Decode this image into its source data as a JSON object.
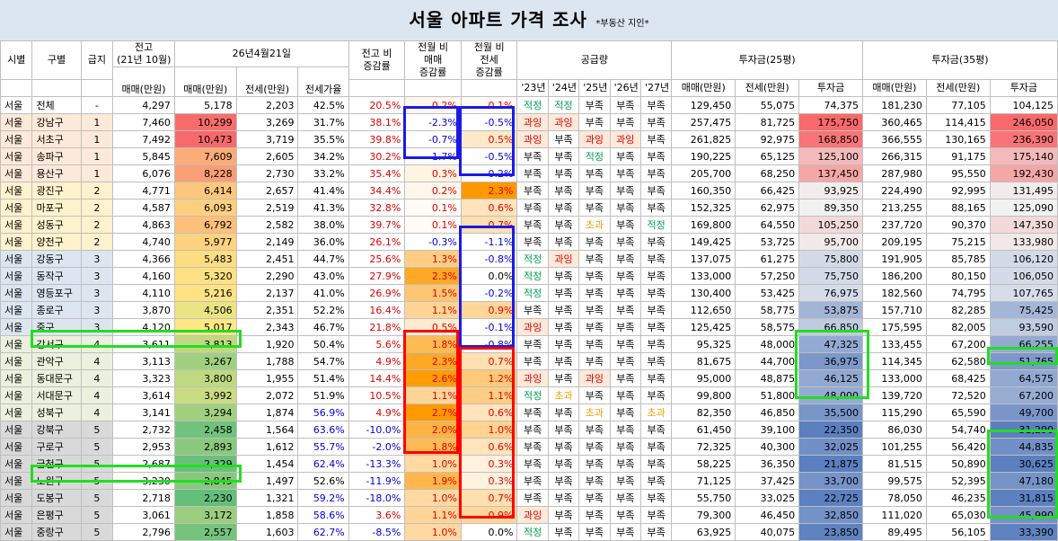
{
  "title": "서울 아파트 가격 조사",
  "subtitle": "*부동산 지인*",
  "headers": {
    "region": "시별",
    "district": "구별",
    "grade": "급지",
    "jeongo_top": "전고",
    "jeongo_mid": "(21년 10월)",
    "jeongo_sale": "매매(만원)",
    "date": "26년4월21일",
    "sale": "매매(만원)",
    "jeonse": "전세(만원)",
    "jeonse_rate": "전세가율",
    "vs_jeongo": "전고 비",
    "vs_jeongo2": "증감률",
    "mom_sale1": "전월 비",
    "mom_sale2": "매매",
    "mom_sale3": "증감률",
    "mom_jeon1": "전월 비",
    "mom_jeon2": "전세",
    "mom_jeon3": "증감률",
    "supply": "공급량",
    "years": [
      "'23년",
      "'24년",
      "'25년",
      "'26년",
      "'27년"
    ],
    "inv25": "투자금(25평)",
    "inv35": "투자금(35평)",
    "inv_sale": "매매(만원)",
    "inv_jeonse": "전세(만원)",
    "inv_amount": "투자금"
  },
  "rows": [
    {
      "city": "서울",
      "gu": "전체",
      "grade": "-",
      "jeongo": "4,297",
      "sale": "5,178",
      "jeonse": "2,203",
      "rate": "42.5%",
      "vs": "20.5%",
      "ms": "0.2%",
      "mj": "0.1%",
      "sup": [
        "적정",
        "적정",
        "부족",
        "부족",
        "부족"
      ],
      "s25": "129,450",
      "j25": "55,075",
      "i25": "74,375",
      "s35": "181,230",
      "j35": "77,105",
      "i35": "104,125"
    },
    {
      "city": "서울",
      "gu": "강남구",
      "grade": "1",
      "jeongo": "7,460",
      "sale": "10,299",
      "jeonse": "3,269",
      "rate": "31.7%",
      "vs": "38.1%",
      "ms": "-2.3%",
      "mj": "-0.5%",
      "sup": [
        "과잉",
        "과잉",
        "부족",
        "부족",
        "부족"
      ],
      "s25": "257,475",
      "j25": "81,725",
      "i25": "175,750",
      "s35": "360,465",
      "j35": "114,415",
      "i35": "246,050"
    },
    {
      "city": "서울",
      "gu": "서초구",
      "grade": "1",
      "jeongo": "7,492",
      "sale": "10,473",
      "jeonse": "3,719",
      "rate": "35.5%",
      "vs": "39.8%",
      "ms": "-0.7%",
      "mj": "0.5%",
      "sup": [
        "과잉",
        "부족",
        "과잉",
        "과잉",
        "부족"
      ],
      "s25": "261,825",
      "j25": "92,975",
      "i25": "168,850",
      "s35": "366,555",
      "j35": "130,165",
      "i35": "236,390"
    },
    {
      "city": "서울",
      "gu": "송파구",
      "grade": "1",
      "jeongo": "5,845",
      "sale": "7,609",
      "jeonse": "2,605",
      "rate": "34.2%",
      "vs": "30.2%",
      "ms": "-1.7%",
      "mj": "-0.5%",
      "sup": [
        "부족",
        "부족",
        "적정",
        "부족",
        "부족"
      ],
      "s25": "190,225",
      "j25": "65,125",
      "i25": "125,100",
      "s35": "266,315",
      "j35": "91,175",
      "i35": "175,140"
    },
    {
      "city": "서울",
      "gu": "용산구",
      "grade": "1",
      "jeongo": "6,076",
      "sale": "8,228",
      "jeonse": "2,730",
      "rate": "33.2%",
      "vs": "35.4%",
      "ms": "0.3%",
      "mj": "-0.2%",
      "sup": [
        "부족",
        "부족",
        "부족",
        "부족",
        "부족"
      ],
      "s25": "205,700",
      "j25": "68,250",
      "i25": "137,450",
      "s35": "287,980",
      "j35": "95,550",
      "i35": "192,430"
    },
    {
      "city": "서울",
      "gu": "광진구",
      "grade": "2",
      "jeongo": "4,771",
      "sale": "6,414",
      "jeonse": "2,657",
      "rate": "41.4%",
      "vs": "34.4%",
      "ms": "0.2%",
      "mj": "2.3%",
      "sup": [
        "부족",
        "부족",
        "부족",
        "부족",
        "부족"
      ],
      "s25": "160,350",
      "j25": "66,425",
      "i25": "93,925",
      "s35": "224,490",
      "j35": "92,995",
      "i35": "131,495"
    },
    {
      "city": "서울",
      "gu": "마포구",
      "grade": "2",
      "jeongo": "4,587",
      "sale": "6,093",
      "jeonse": "2,519",
      "rate": "41.3%",
      "vs": "32.8%",
      "ms": "0.1%",
      "mj": "0.6%",
      "sup": [
        "부족",
        "부족",
        "부족",
        "부족",
        "부족"
      ],
      "s25": "152,325",
      "j25": "62,975",
      "i25": "89,350",
      "s35": "213,255",
      "j35": "88,165",
      "i35": "125,090"
    },
    {
      "city": "서울",
      "gu": "성동구",
      "grade": "2",
      "jeongo": "4,863",
      "sale": "6,792",
      "jeonse": "2,582",
      "rate": "38.0%",
      "vs": "39.7%",
      "ms": "0.1%",
      "mj": "0.7%",
      "sup": [
        "부족",
        "부족",
        "초과",
        "부족",
        "적정"
      ],
      "s25": "169,800",
      "j25": "64,550",
      "i25": "105,250",
      "s35": "237,720",
      "j35": "90,370",
      "i35": "147,350"
    },
    {
      "city": "서울",
      "gu": "양천구",
      "grade": "2",
      "jeongo": "4,740",
      "sale": "5,977",
      "jeonse": "2,149",
      "rate": "36.0%",
      "vs": "26.1%",
      "ms": "-0.3%",
      "mj": "-1.1%",
      "sup": [
        "부족",
        "부족",
        "부족",
        "부족",
        "부족"
      ],
      "s25": "149,425",
      "j25": "53,725",
      "i25": "95,700",
      "s35": "209,195",
      "j35": "75,215",
      "i35": "133,980"
    },
    {
      "city": "서울",
      "gu": "강동구",
      "grade": "3",
      "jeongo": "4,366",
      "sale": "5,483",
      "jeonse": "2,451",
      "rate": "44.7%",
      "vs": "25.6%",
      "ms": "1.3%",
      "mj": "-0.8%",
      "sup": [
        "적정",
        "과잉",
        "부족",
        "부족",
        "부족"
      ],
      "s25": "137,075",
      "j25": "61,275",
      "i25": "75,800",
      "s35": "191,905",
      "j35": "85,785",
      "i35": "106,120"
    },
    {
      "city": "서울",
      "gu": "동작구",
      "grade": "3",
      "jeongo": "4,160",
      "sale": "5,320",
      "jeonse": "2,290",
      "rate": "43.0%",
      "vs": "27.9%",
      "ms": "2.3%",
      "mj": "0.0%",
      "sup": [
        "적정",
        "부족",
        "부족",
        "부족",
        "부족"
      ],
      "s25": "133,000",
      "j25": "57,250",
      "i25": "75,750",
      "s35": "186,200",
      "j35": "80,150",
      "i35": "106,050"
    },
    {
      "city": "서울",
      "gu": "영등포구",
      "grade": "3",
      "jeongo": "4,110",
      "sale": "5,216",
      "jeonse": "2,137",
      "rate": "41.0%",
      "vs": "26.9%",
      "ms": "1.5%",
      "mj": "-0.2%",
      "sup": [
        "적정",
        "부족",
        "부족",
        "부족",
        "부족"
      ],
      "s25": "130,400",
      "j25": "53,425",
      "i25": "76,975",
      "s35": "182,560",
      "j35": "74,795",
      "i35": "107,765"
    },
    {
      "city": "서울",
      "gu": "종로구",
      "grade": "3",
      "jeongo": "3,870",
      "sale": "4,506",
      "jeonse": "2,351",
      "rate": "52.2%",
      "vs": "16.4%",
      "ms": "1.1%",
      "mj": "0.9%",
      "sup": [
        "부족",
        "부족",
        "부족",
        "부족",
        "부족"
      ],
      "s25": "112,650",
      "j25": "58,775",
      "i25": "53,875",
      "s35": "157,710",
      "j35": "82,285",
      "i35": "75,425"
    },
    {
      "city": "서울",
      "gu": "중구",
      "grade": "3",
      "jeongo": "4,120",
      "sale": "5,017",
      "jeonse": "2,343",
      "rate": "46.7%",
      "vs": "21.8%",
      "ms": "0.5%",
      "mj": "-0.1%",
      "sup": [
        "과잉",
        "부족",
        "부족",
        "부족",
        "부족"
      ],
      "s25": "125,425",
      "j25": "58,575",
      "i25": "66,850",
      "s35": "175,595",
      "j35": "82,005",
      "i35": "93,590"
    },
    {
      "city": "서울",
      "gu": "강서구",
      "grade": "4",
      "jeongo": "3,611",
      "sale": "3,813",
      "jeonse": "1,920",
      "rate": "50.4%",
      "vs": "5.6%",
      "ms": "1.8%",
      "mj": "-0.8%",
      "sup": [
        "부족",
        "부족",
        "부족",
        "부족",
        "부족"
      ],
      "s25": "95,325",
      "j25": "48,000",
      "i25": "47,325",
      "s35": "133,455",
      "j35": "67,200",
      "i35": "66,255"
    },
    {
      "city": "서울",
      "gu": "관악구",
      "grade": "4",
      "jeongo": "3,113",
      "sale": "3,267",
      "jeonse": "1,788",
      "rate": "54.7%",
      "vs": "4.9%",
      "ms": "2.3%",
      "mj": "0.7%",
      "sup": [
        "부족",
        "부족",
        "부족",
        "부족",
        "부족"
      ],
      "s25": "81,675",
      "j25": "44,700",
      "i25": "36,975",
      "s35": "114,345",
      "j35": "62,580",
      "i35": "51,765"
    },
    {
      "city": "서울",
      "gu": "동대문구",
      "grade": "4",
      "jeongo": "3,323",
      "sale": "3,800",
      "jeonse": "1,955",
      "rate": "51.4%",
      "vs": "14.4%",
      "ms": "2.6%",
      "mj": "1.2%",
      "sup": [
        "과잉",
        "부족",
        "과잉",
        "부족",
        "부족"
      ],
      "s25": "95,000",
      "j25": "48,875",
      "i25": "46,125",
      "s35": "133,000",
      "j35": "68,425",
      "i35": "64,575"
    },
    {
      "city": "서울",
      "gu": "서대문구",
      "grade": "4",
      "jeongo": "3,614",
      "sale": "3,992",
      "jeonse": "2,072",
      "rate": "51.9%",
      "vs": "10.5%",
      "ms": "1.1%",
      "mj": "1.1%",
      "sup": [
        "적정",
        "초과",
        "부족",
        "부족",
        "부족"
      ],
      "s25": "99,800",
      "j25": "51,800",
      "i25": "48,000",
      "s35": "139,720",
      "j35": "72,520",
      "i35": "67,200"
    },
    {
      "city": "서울",
      "gu": "성북구",
      "grade": "4",
      "jeongo": "3,141",
      "sale": "3,294",
      "jeonse": "1,874",
      "rate": "56.9%",
      "vs": "4.9%",
      "ms": "2.7%",
      "mj": "0.6%",
      "sup": [
        "부족",
        "부족",
        "초과",
        "부족",
        "초과"
      ],
      "s25": "82,350",
      "j25": "46,850",
      "i25": "35,500",
      "s35": "115,290",
      "j35": "65,590",
      "i35": "49,700"
    },
    {
      "city": "서울",
      "gu": "강북구",
      "grade": "5",
      "jeongo": "2,732",
      "sale": "2,458",
      "jeonse": "1,564",
      "rate": "63.6%",
      "vs": "-10.0%",
      "ms": "2.0%",
      "mj": "1.0%",
      "sup": [
        "부족",
        "부족",
        "부족",
        "부족",
        "부족"
      ],
      "s25": "61,450",
      "j25": "39,100",
      "i25": "22,350",
      "s35": "86,030",
      "j35": "54,740",
      "i35": "31,290"
    },
    {
      "city": "서울",
      "gu": "구로구",
      "grade": "5",
      "jeongo": "2,953",
      "sale": "2,893",
      "jeonse": "1,612",
      "rate": "55.7%",
      "vs": "-2.0%",
      "ms": "1.8%",
      "mj": "0.6%",
      "sup": [
        "부족",
        "부족",
        "부족",
        "부족",
        "부족"
      ],
      "s25": "72,325",
      "j25": "40,300",
      "i25": "32,025",
      "s35": "101,255",
      "j35": "56,420",
      "i35": "44,835"
    },
    {
      "city": "서울",
      "gu": "금천구",
      "grade": "5",
      "jeongo": "2,687",
      "sale": "2,329",
      "jeonse": "1,454",
      "rate": "62.4%",
      "vs": "-13.3%",
      "ms": "1.0%",
      "mj": "0.3%",
      "sup": [
        "부족",
        "부족",
        "부족",
        "부족",
        "부족"
      ],
      "s25": "58,225",
      "j25": "36,350",
      "i25": "21,875",
      "s35": "81,515",
      "j35": "50,890",
      "i35": "30,625"
    },
    {
      "city": "서울",
      "gu": "노원구",
      "grade": "5",
      "jeongo": "3,230",
      "sale": "2,845",
      "jeonse": "1,497",
      "rate": "52.6%",
      "vs": "-11.9%",
      "ms": "1.9%",
      "mj": "0.3%",
      "sup": [
        "부족",
        "부족",
        "부족",
        "부족",
        "부족"
      ],
      "s25": "71,125",
      "j25": "37,425",
      "i25": "33,700",
      "s35": "99,575",
      "j35": "52,395",
      "i35": "47,180"
    },
    {
      "city": "서울",
      "gu": "도봉구",
      "grade": "5",
      "jeongo": "2,718",
      "sale": "2,230",
      "jeonse": "1,321",
      "rate": "59.2%",
      "vs": "-18.0%",
      "ms": "1.0%",
      "mj": "0.7%",
      "sup": [
        "부족",
        "부족",
        "부족",
        "부족",
        "부족"
      ],
      "s25": "55,750",
      "j25": "33,025",
      "i25": "22,725",
      "s35": "78,050",
      "j35": "46,235",
      "i35": "31,815"
    },
    {
      "city": "서울",
      "gu": "은평구",
      "grade": "5",
      "jeongo": "3,061",
      "sale": "3,172",
      "jeonse": "1,858",
      "rate": "58.6%",
      "vs": "3.6%",
      "ms": "1.1%",
      "mj": "0.9%",
      "sup": [
        "과잉",
        "부족",
        "부족",
        "부족",
        "부족"
      ],
      "s25": "79,300",
      "j25": "46,450",
      "i25": "32,850",
      "s35": "111,020",
      "j35": "65,030",
      "i35": "45,990"
    },
    {
      "city": "서울",
      "gu": "중랑구",
      "grade": "5",
      "jeongo": "2,796",
      "sale": "2,557",
      "jeonse": "1,603",
      "rate": "62.7%",
      "vs": "-8.5%",
      "ms": "1.0%",
      "mj": "0.0%",
      "sup": [
        "적정",
        "부족",
        "부족",
        "부족",
        "부족"
      ],
      "s25": "63,925",
      "j25": "40,075",
      "i25": "23,850",
      "s35": "89,495",
      "j35": "56,105",
      "i35": "33,390"
    }
  ],
  "colors": {
    "title_bg": "#dce6f1",
    "grade_bg": {
      "-": "#ffffff",
      "1": "#fde9d9",
      "2": "#fff2cc",
      "3": "#dce6f1",
      "4": "#ebf1de",
      "5": "#d9d9d9"
    },
    "sale_hi": "#f8696b",
    "sale_mid": "#ffeb84",
    "sale_lo": "#63be7b",
    "mom_sale_hi": "#ff9900",
    "mom_sale_lo": "#ffffff",
    "mom_jeon_hi": "#ff9900",
    "mom_jeon_lo": "#ffffff",
    "inv_lo": "#5b7fbf",
    "inv_mid": "#f2f2f2",
    "inv_hi": "#f8696b",
    "ok": "#00a050",
    "over": "#e00000",
    "slight": "#f0a000",
    "frame_green": "#22dd22",
    "frame_blue": "#1a1ae6",
    "frame_red": "#ff0000"
  }
}
